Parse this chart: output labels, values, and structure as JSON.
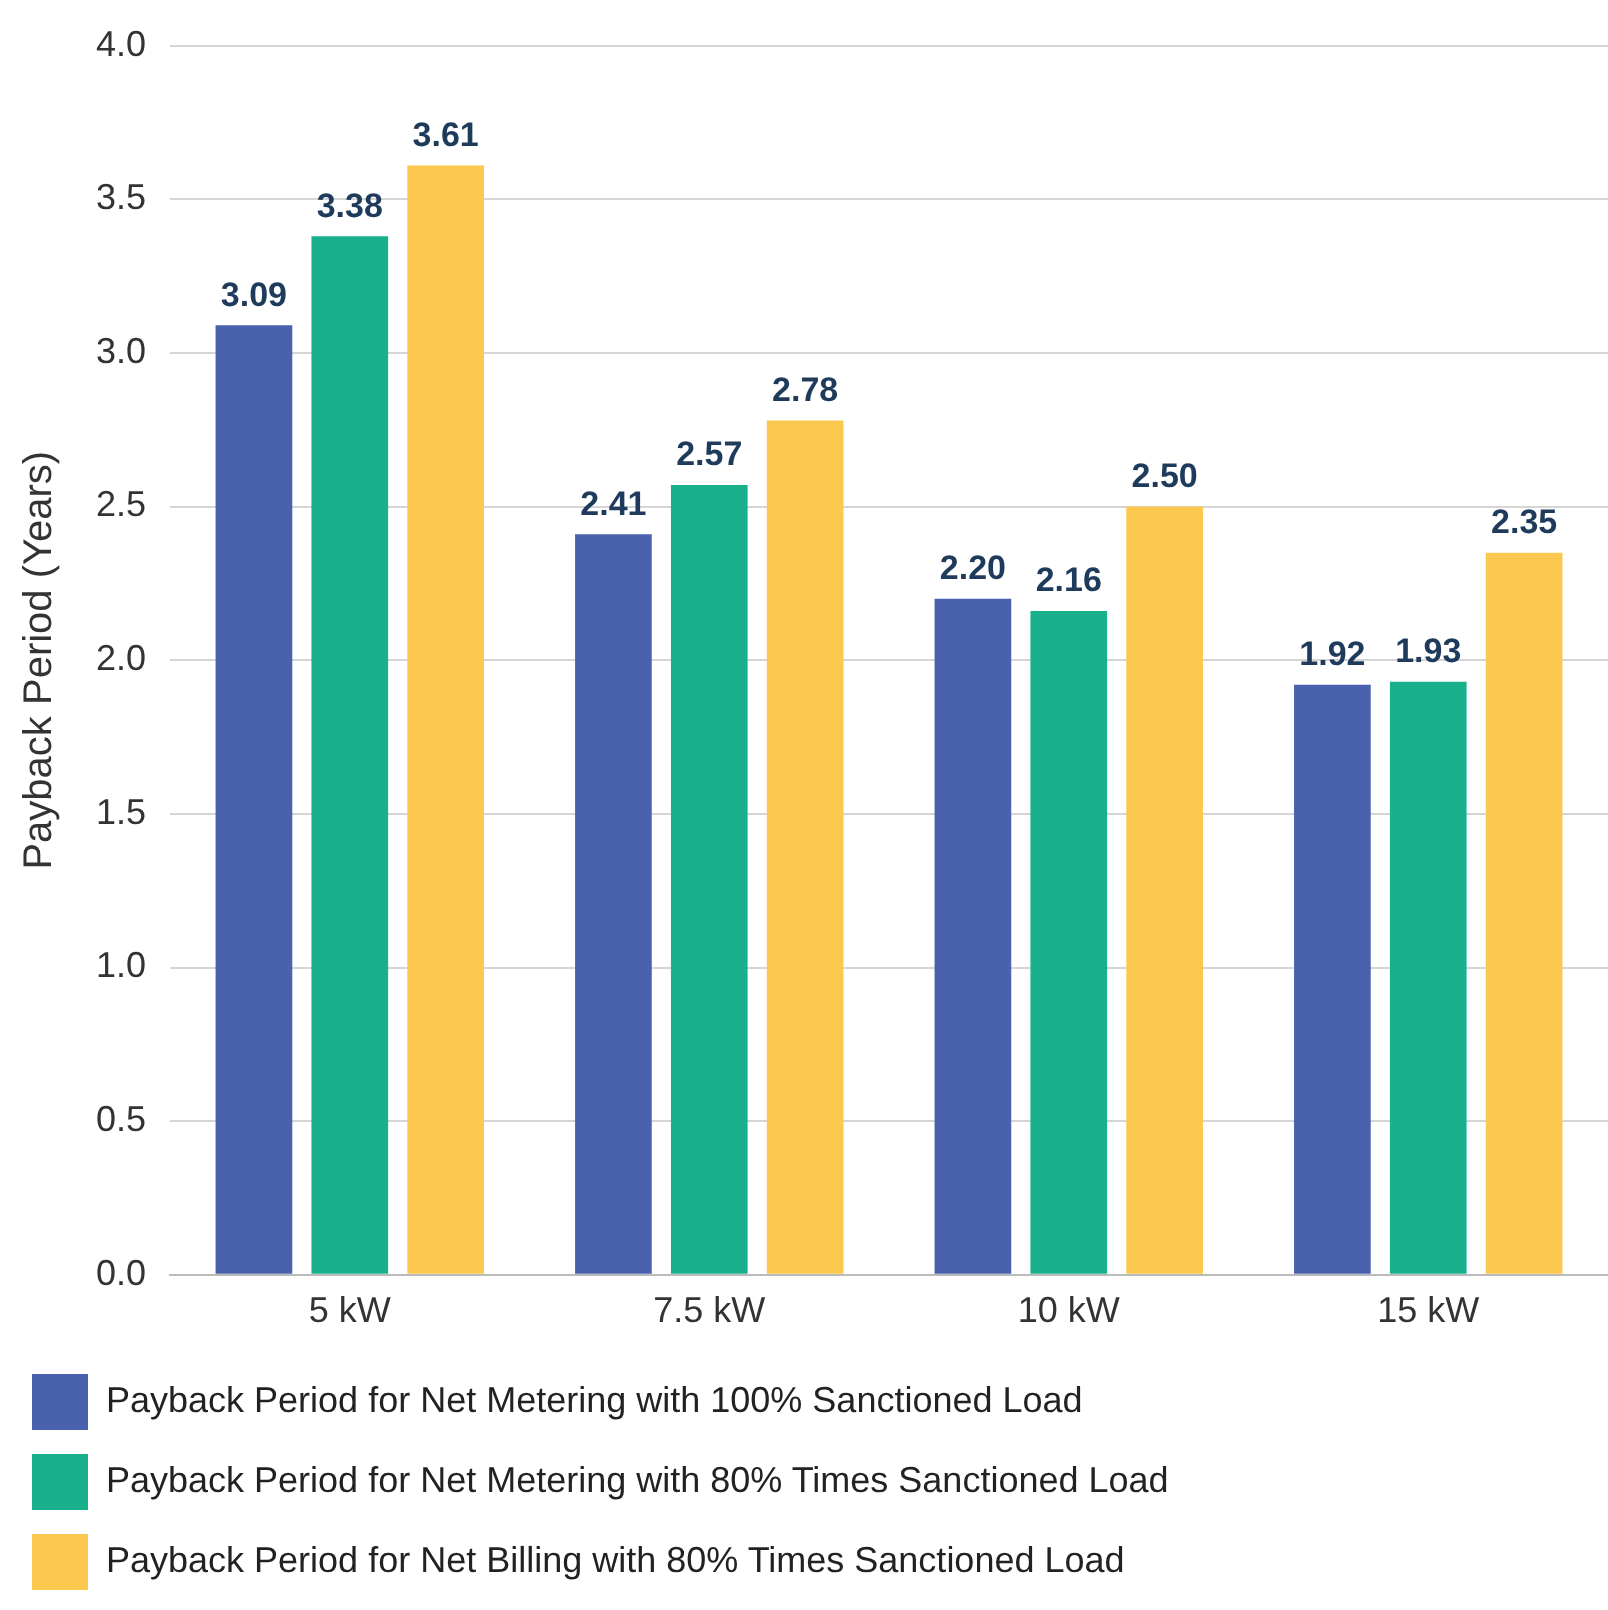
{
  "chart_data": {
    "type": "bar",
    "ylabel": "Payback Period (Years)",
    "categories": [
      "5 kW",
      "7.5 kW",
      "10 kW",
      "15 kW"
    ],
    "series": [
      {
        "name": "Payback Period for Net Metering with 100% Sanctioned Load",
        "color": "#4a62ae",
        "values": [
          3.09,
          2.41,
          2.2,
          1.92
        ],
        "value_labels": [
          "3.09",
          "2.41",
          "2.20",
          "1.92"
        ]
      },
      {
        "name": "Payback Period for Net Metering with 80% Times Sanctioned Load",
        "color": "#19b08c",
        "values": [
          3.38,
          2.57,
          2.16,
          1.93
        ],
        "value_labels": [
          "3.38",
          "2.57",
          "2.16",
          "1.93"
        ]
      },
      {
        "name": "Payback Period for Net Billing with 80% Times Sanctioned Load",
        "color": "#fdc84f",
        "values": [
          3.61,
          2.78,
          2.5,
          2.35
        ],
        "value_labels": [
          "3.61",
          "2.78",
          "2.50",
          "2.35"
        ]
      }
    ],
    "ylim": [
      0,
      4
    ],
    "yticks": [
      {
        "value": 0,
        "label": "0.0"
      },
      {
        "value": 0.5,
        "label": "0.5"
      },
      {
        "value": 1,
        "label": "1.0"
      },
      {
        "value": 1.5,
        "label": "1.5"
      },
      {
        "value": 2,
        "label": "2.0"
      },
      {
        "value": 2.5,
        "label": "2.5"
      },
      {
        "value": 3,
        "label": "3.0"
      },
      {
        "value": 3.5,
        "label": "3.5"
      },
      {
        "value": 4,
        "label": "4.0"
      }
    ],
    "grid": "y",
    "legend": "bottom"
  }
}
